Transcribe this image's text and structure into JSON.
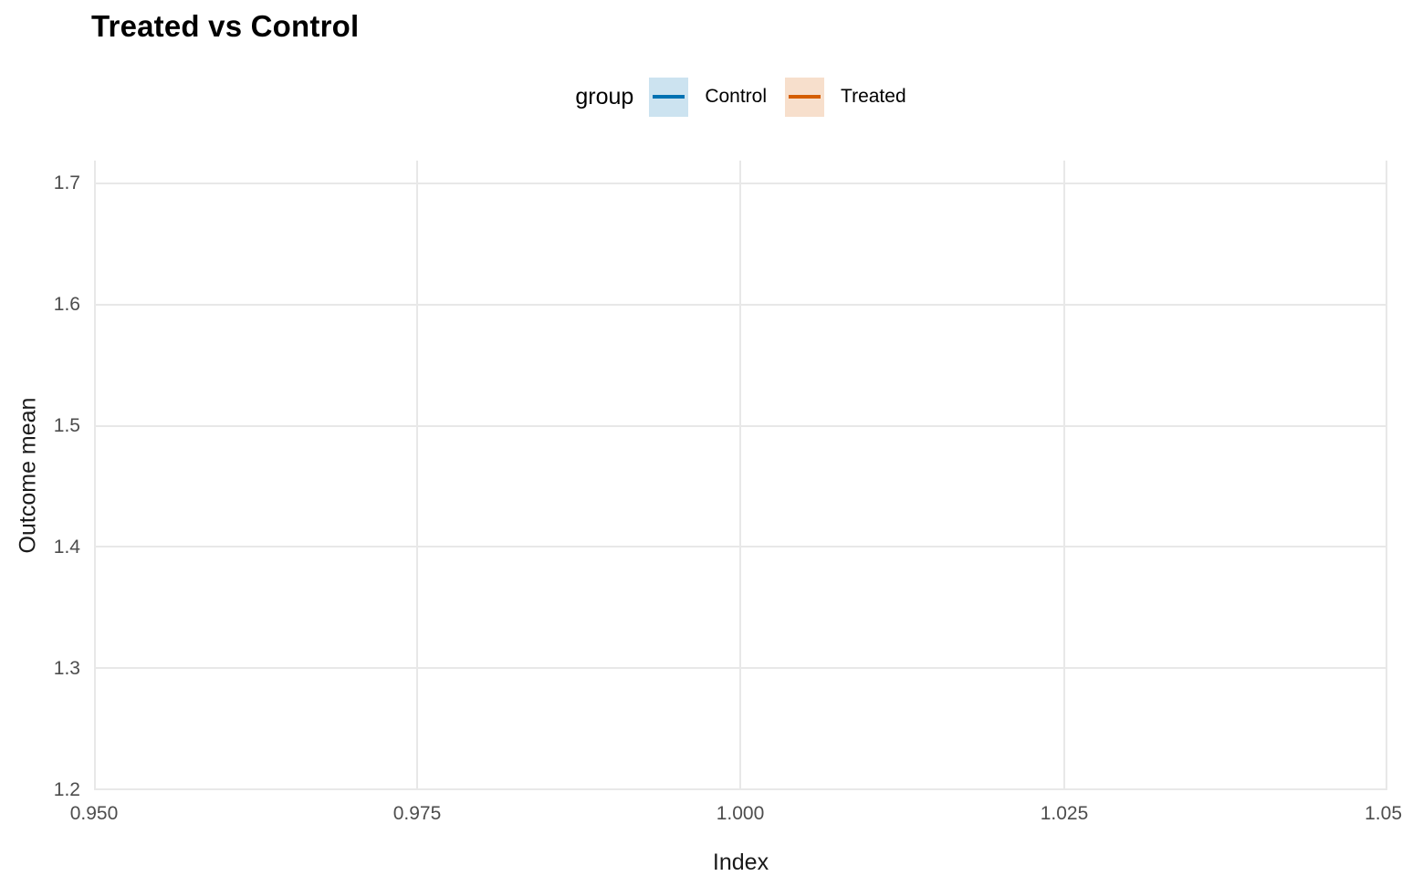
{
  "title": "Treated vs Control",
  "legend": {
    "title": "group",
    "position": "top-center",
    "items": [
      {
        "label": "Control",
        "line_color": "#0072B2",
        "key_fill_color": "#CCE3F0"
      },
      {
        "label": "Treated",
        "line_color": "#D55E00",
        "key_fill_color": "#F7DFCC"
      }
    ]
  },
  "chart_data": {
    "type": "line",
    "title": "Treated vs Control",
    "xlabel": "Index",
    "ylabel": "Outcome mean",
    "x_ticks": [
      0.95,
      0.975,
      1.0,
      1.025,
      1.05
    ],
    "x_tick_labels": [
      "0.950",
      "0.975",
      "1.000",
      "1.025",
      "1.05"
    ],
    "y_ticks": [
      1.2,
      1.3,
      1.4,
      1.5,
      1.6,
      1.7
    ],
    "y_tick_labels": [
      "1.2",
      "1.3",
      "1.4",
      "1.5",
      "1.6",
      "1.7"
    ],
    "xlim": [
      0.95,
      1.05
    ],
    "ylim": [
      1.2,
      1.72
    ],
    "grid": "major-only",
    "grid_color": "#e8e8e8",
    "panel_background": "#ffffff",
    "tick_label_color": "#4d4d4d",
    "legend_position": "top",
    "series": [
      {
        "name": "Control",
        "color": "#0072B2",
        "x": [],
        "y": []
      },
      {
        "name": "Treated",
        "color": "#D55E00",
        "x": [],
        "y": []
      }
    ]
  }
}
